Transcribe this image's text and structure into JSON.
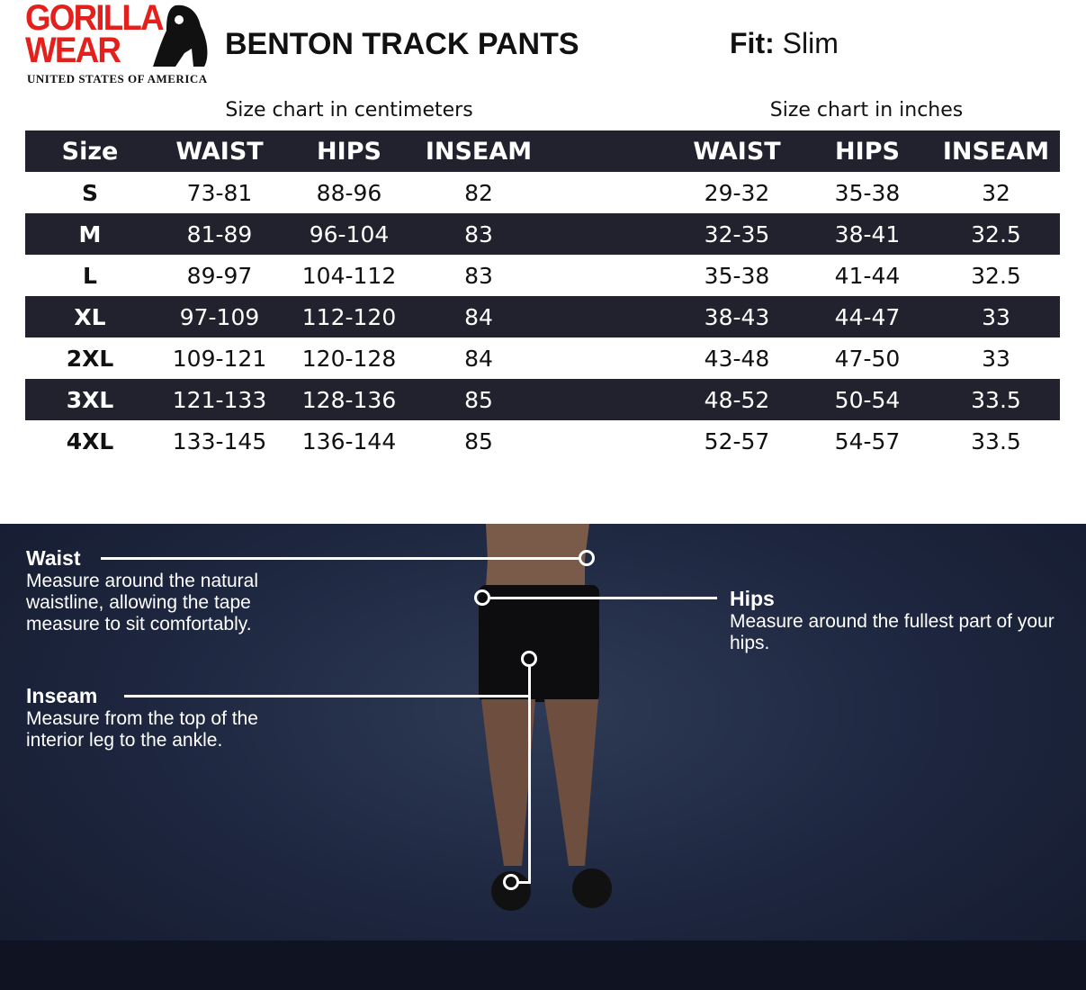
{
  "brand": {
    "logo_line1": "GORILLA",
    "logo_line2": "WEAR",
    "logo_sub": "UNITED STATES OF AMERICA"
  },
  "product": {
    "title": "BENTON TRACK PANTS",
    "fit_label": "Fit:",
    "fit_value": "Slim"
  },
  "captions": {
    "cm": "Size chart in centimeters",
    "in": "Size chart in inches"
  },
  "table": {
    "headers": [
      "Size",
      "WAIST",
      "HIPS",
      "INSEAM",
      "",
      "WAIST",
      "HIPS",
      "INSEAM"
    ],
    "rows": [
      [
        "S",
        "73-81",
        "88-96",
        "82",
        "29-32",
        "35-38",
        "32"
      ],
      [
        "M",
        "81-89",
        "96-104",
        "83",
        "32-35",
        "38-41",
        "32.5"
      ],
      [
        "L",
        "89-97",
        "104-112",
        "83",
        "35-38",
        "41-44",
        "32.5"
      ],
      [
        "XL",
        "97-109",
        "112-120",
        "84",
        "38-43",
        "44-47",
        "33"
      ],
      [
        "2XL",
        "109-121",
        "120-128",
        "84",
        "43-48",
        "47-50",
        "33"
      ],
      [
        "3XL",
        "121-133",
        "128-136",
        "85",
        "48-52",
        "50-54",
        "33.5"
      ],
      [
        "4XL",
        "133-145",
        "136-144",
        "85",
        "52-57",
        "54-57",
        "33.5"
      ]
    ]
  },
  "guide": {
    "waist": {
      "title": "Waist",
      "desc": "Measure around the natural waistline, allowing the tape measure to sit comfortably."
    },
    "hips": {
      "title": "Hips",
      "desc": "Measure around the fullest part of your hips."
    },
    "inseam": {
      "title": "Inseam",
      "desc": "Measure from the top of the interior leg to the ankle."
    }
  },
  "colors": {
    "brand_red": "#e3201b",
    "header_dark": "#22222e",
    "guide_bg": "#1e2740"
  }
}
